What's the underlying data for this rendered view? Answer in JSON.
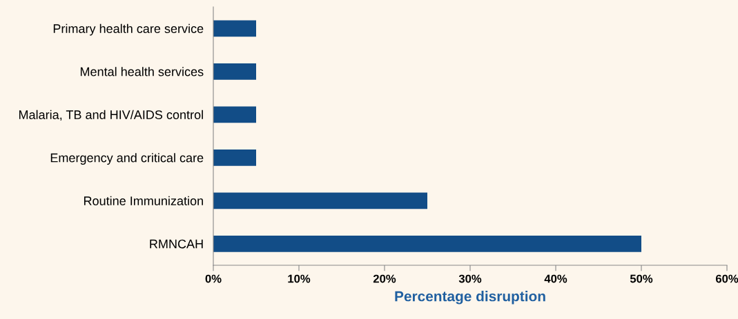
{
  "chart_data": {
    "type": "bar",
    "orientation": "horizontal",
    "xlabel": "Percentage disruption",
    "categories": [
      "Primary health care service",
      "Mental health services",
      "Malaria, TB and HIV/AIDS control",
      "Emergency and critical care",
      "Routine Immunization",
      "RMNCAH"
    ],
    "values": [
      5,
      5,
      5,
      5,
      25,
      50
    ],
    "color": "#124d87",
    "xlim": [
      0,
      60
    ],
    "xticks": [
      {
        "value": 0,
        "label": "0%"
      },
      {
        "value": 10,
        "label": "10%"
      },
      {
        "value": 20,
        "label": "20%"
      },
      {
        "value": 30,
        "label": "30%"
      },
      {
        "value": 40,
        "label": "40%"
      },
      {
        "value": 50,
        "label": "50%"
      },
      {
        "value": 60,
        "label": "60%"
      }
    ],
    "grid": false,
    "legend": false
  }
}
